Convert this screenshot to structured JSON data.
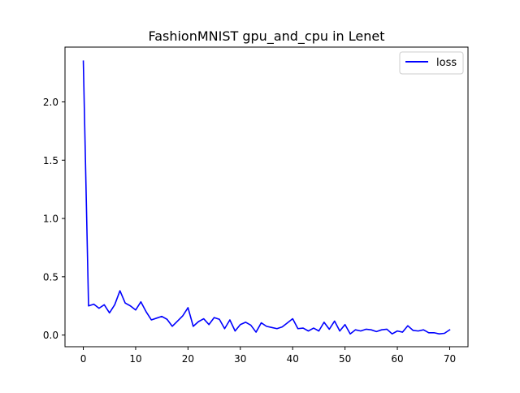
{
  "chart_data": {
    "type": "line",
    "title": "FashionMNIST gpu_and_cpu in Lenet",
    "xlabel": "",
    "ylabel": "",
    "xlim": [
      -3.5,
      73.5
    ],
    "ylim": [
      -0.1,
      2.47
    ],
    "xticks": [
      0,
      10,
      20,
      30,
      40,
      50,
      60,
      70
    ],
    "yticks": [
      0.0,
      0.5,
      1.0,
      1.5,
      2.0
    ],
    "xtick_labels": [
      "0",
      "10",
      "20",
      "30",
      "40",
      "50",
      "60",
      "70"
    ],
    "ytick_labels": [
      "0.0",
      "0.5",
      "1.0",
      "1.5",
      "2.0"
    ],
    "grid": false,
    "legend_position": "top-right",
    "series": [
      {
        "name": "loss",
        "color": "#0000ff",
        "x": [
          0,
          1,
          2,
          3,
          4,
          5,
          6,
          7,
          8,
          9,
          10,
          11,
          12,
          13,
          14,
          15,
          16,
          17,
          18,
          19,
          20,
          21,
          22,
          23,
          24,
          25,
          26,
          27,
          28,
          29,
          30,
          31,
          32,
          33,
          34,
          35,
          36,
          37,
          38,
          39,
          40,
          41,
          42,
          43,
          44,
          45,
          46,
          47,
          48,
          49,
          50,
          51,
          52,
          53,
          54,
          55,
          56,
          57,
          58,
          59,
          60,
          61,
          62,
          63,
          64,
          65,
          66,
          67,
          68,
          69,
          70
        ],
        "values": [
          2.35,
          0.25,
          0.265,
          0.23,
          0.26,
          0.19,
          0.26,
          0.38,
          0.275,
          0.25,
          0.215,
          0.285,
          0.2,
          0.13,
          0.145,
          0.16,
          0.135,
          0.075,
          0.12,
          0.165,
          0.235,
          0.075,
          0.115,
          0.14,
          0.09,
          0.15,
          0.135,
          0.055,
          0.13,
          0.035,
          0.09,
          0.11,
          0.085,
          0.025,
          0.105,
          0.075,
          0.065,
          0.055,
          0.07,
          0.105,
          0.14,
          0.055,
          0.06,
          0.035,
          0.06,
          0.035,
          0.11,
          0.05,
          0.12,
          0.035,
          0.09,
          0.01,
          0.045,
          0.035,
          0.05,
          0.045,
          0.03,
          0.045,
          0.05,
          0.01,
          0.035,
          0.025,
          0.08,
          0.04,
          0.035,
          0.045,
          0.02,
          0.02,
          0.01,
          0.015,
          0.045
        ]
      }
    ]
  }
}
